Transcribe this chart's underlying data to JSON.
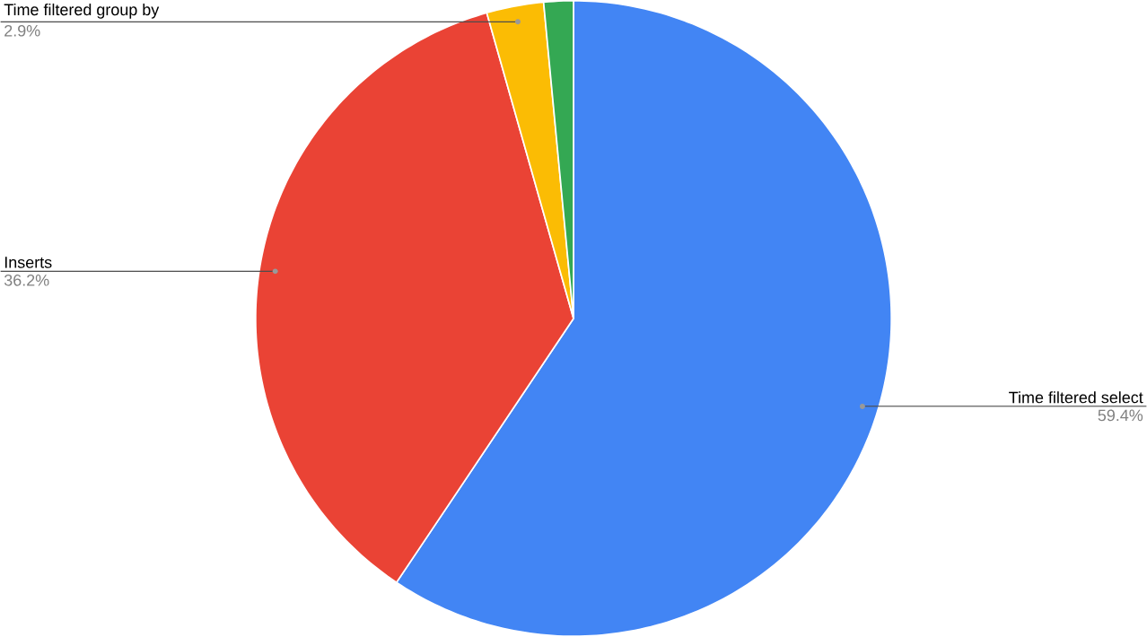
{
  "chart_data": {
    "type": "pie",
    "categories": [
      "Time filtered select",
      "Inserts",
      "Time filtered group by",
      null
    ],
    "values": [
      59.4,
      36.2,
      2.9,
      1.5
    ],
    "value_labels": [
      "59.4%",
      "36.2%",
      "2.9%",
      null
    ],
    "colors": [
      "#4285f4",
      "#ea4335",
      "#fbbc04",
      "#34a853"
    ]
  }
}
